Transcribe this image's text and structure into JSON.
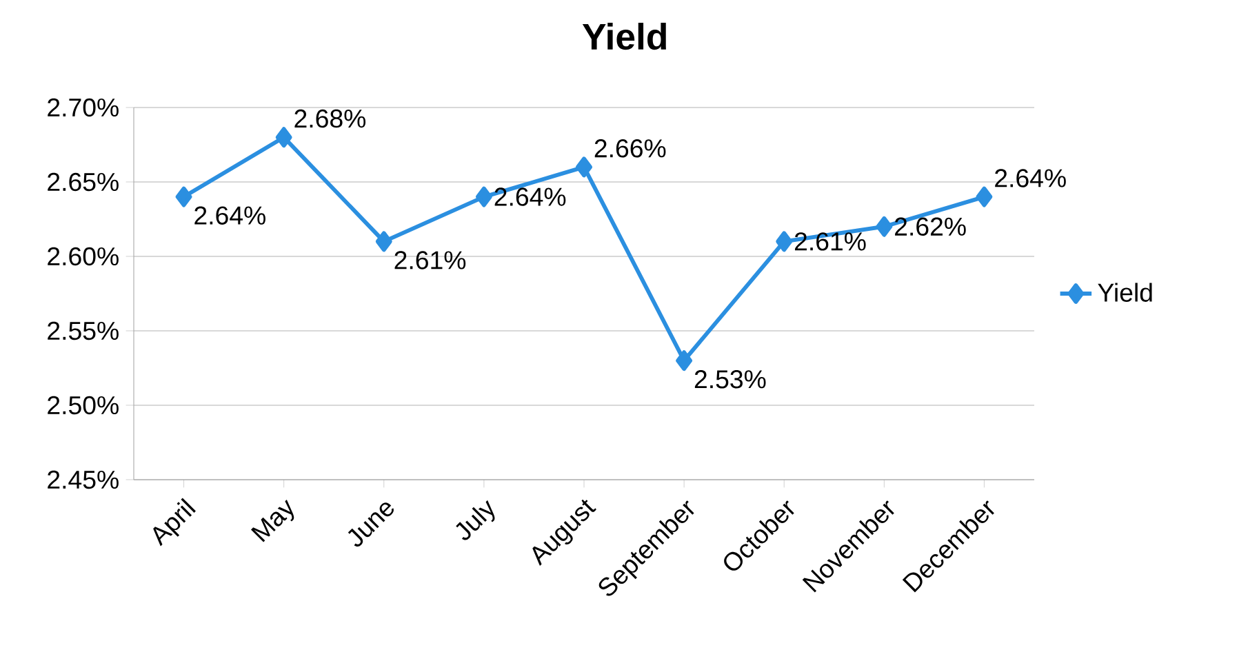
{
  "chart_data": {
    "type": "line",
    "title": "Yield",
    "categories": [
      "April",
      "May",
      "June",
      "July",
      "August",
      "September",
      "October",
      "November",
      "December"
    ],
    "series": [
      {
        "name": "Yield",
        "color": "#2b8fe0",
        "values": [
          2.64,
          2.68,
          2.61,
          2.64,
          2.66,
          2.53,
          2.61,
          2.62,
          2.64
        ],
        "value_labels": [
          "2.64%",
          "2.68%",
          "2.61%",
          "2.64%",
          "2.66%",
          "2.53%",
          "2.61%",
          "2.62%",
          "2.64%"
        ]
      }
    ],
    "ylim": [
      2.45,
      2.7
    ],
    "yticks": [
      {
        "value": 2.45,
        "label": "2.45%"
      },
      {
        "value": 2.5,
        "label": "2.50%"
      },
      {
        "value": 2.55,
        "label": "2.55%"
      },
      {
        "value": 2.6,
        "label": "2.60%"
      },
      {
        "value": 2.65,
        "label": "2.65%"
      },
      {
        "value": 2.7,
        "label": "2.70%"
      }
    ],
    "grid": "y",
    "legend": "right",
    "marker": "diamond",
    "line_style": "solid"
  }
}
